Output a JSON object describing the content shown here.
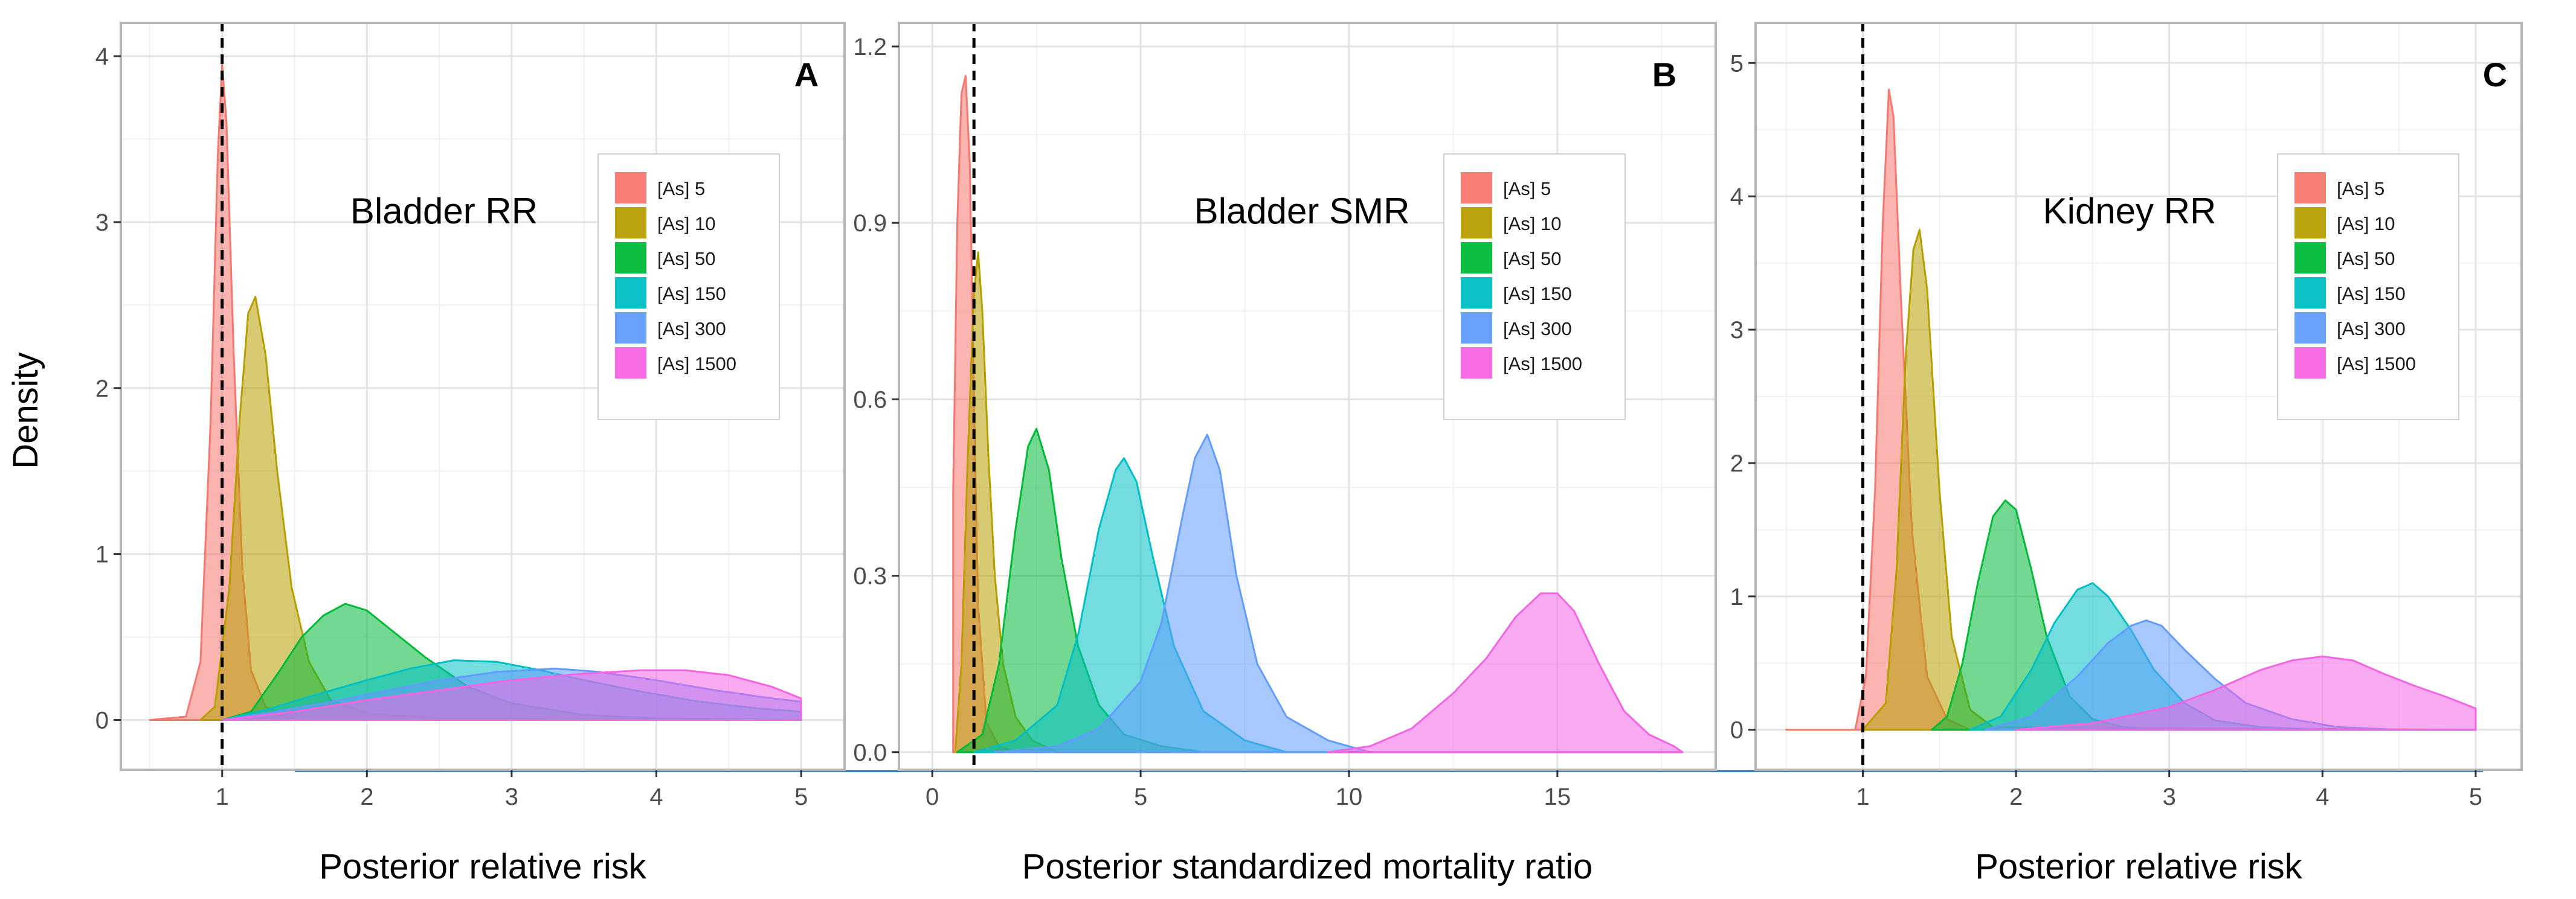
{
  "colors": {
    "series": [
      "#F8766D",
      "#B79F00",
      "#00BA38",
      "#00BFC4",
      "#619CFF",
      "#F564E3"
    ],
    "grid_major": "#e3e3e3",
    "grid_minor": "#f1f1f1",
    "frame": "#b5b5b5",
    "vline": "#000000",
    "bottom_rule": "#4a7fb5"
  },
  "y_axis_label": "Density",
  "legend_entries": [
    "[As] 5",
    "[As] 10",
    "[As] 50",
    "[As] 150",
    "[As] 300",
    "[As] 1500"
  ],
  "chart_data": [
    {
      "type": "area",
      "panel": "A",
      "annotation": "Bladder RR",
      "xlabel": "Posterior relative risk",
      "ylabel": "Density",
      "xlim": [
        0.3,
        5.3
      ],
      "ylim": [
        -0.3,
        4.2
      ],
      "xticks": [
        1,
        2,
        3,
        4,
        5
      ],
      "yticks": [
        0,
        1,
        2,
        3,
        4
      ],
      "reference_line_x": 1,
      "series": [
        {
          "name": "[As] 5",
          "x": [
            0.5,
            0.75,
            0.85,
            0.92,
            0.97,
            1.0,
            1.03,
            1.08,
            1.14,
            1.2,
            1.3,
            1.45,
            1.6,
            5.0
          ],
          "y": [
            0,
            0.02,
            0.35,
            1.8,
            3.4,
            3.95,
            3.6,
            2.2,
            0.9,
            0.3,
            0.08,
            0.02,
            0,
            0
          ]
        },
        {
          "name": "[As] 10",
          "x": [
            0.85,
            0.95,
            1.05,
            1.12,
            1.18,
            1.23,
            1.3,
            1.38,
            1.48,
            1.6,
            1.75,
            2.0,
            2.5,
            5.0
          ],
          "y": [
            0,
            0.08,
            0.8,
            1.8,
            2.45,
            2.55,
            2.2,
            1.5,
            0.8,
            0.35,
            0.12,
            0.04,
            0.01,
            0
          ]
        },
        {
          "name": "[As] 50",
          "x": [
            1.0,
            1.2,
            1.4,
            1.55,
            1.7,
            1.85,
            2.0,
            2.2,
            2.4,
            2.7,
            3.0,
            3.5,
            4.0,
            5.0
          ],
          "y": [
            0,
            0.05,
            0.3,
            0.5,
            0.63,
            0.7,
            0.66,
            0.52,
            0.38,
            0.2,
            0.1,
            0.03,
            0.01,
            0
          ]
        },
        {
          "name": "[As] 150",
          "x": [
            1.0,
            1.3,
            1.6,
            2.0,
            2.3,
            2.6,
            2.9,
            3.2,
            3.5,
            3.9,
            4.3,
            4.7,
            5.0
          ],
          "y": [
            0,
            0.06,
            0.14,
            0.24,
            0.31,
            0.36,
            0.35,
            0.3,
            0.24,
            0.17,
            0.11,
            0.07,
            0.05
          ]
        },
        {
          "name": "[As] 300",
          "x": [
            1.0,
            1.3,
            1.7,
            2.1,
            2.5,
            2.9,
            3.3,
            3.6,
            4.0,
            4.4,
            4.8,
            5.0
          ],
          "y": [
            0,
            0.04,
            0.1,
            0.17,
            0.24,
            0.29,
            0.31,
            0.29,
            0.24,
            0.18,
            0.13,
            0.11
          ]
        },
        {
          "name": "[As] 1500",
          "x": [
            1.0,
            1.5,
            2.0,
            2.5,
            3.0,
            3.5,
            3.9,
            4.2,
            4.5,
            4.8,
            5.0
          ],
          "y": [
            0,
            0.05,
            0.12,
            0.18,
            0.24,
            0.28,
            0.3,
            0.3,
            0.27,
            0.2,
            0.13
          ]
        }
      ]
    },
    {
      "type": "area",
      "panel": "B",
      "annotation": "Bladder SMR",
      "xlabel": "Posterior standardized mortality ratio",
      "ylabel": "",
      "xlim": [
        -0.8,
        18.8
      ],
      "ylim": [
        -0.03,
        1.24
      ],
      "xticks": [
        0,
        5,
        10,
        15
      ],
      "yticks": [
        0.0,
        0.3,
        0.6,
        0.9,
        1.2
      ],
      "ytick_labels": [
        "0.0",
        "0.3",
        "0.6",
        "0.9",
        "1.2"
      ],
      "reference_line_x": 1,
      "series": [
        {
          "name": "[As] 5",
          "x": [
            0.5,
            0.5,
            0.6,
            0.7,
            0.8,
            0.9,
            1.0,
            1.1,
            1.3,
            1.6,
            2.0,
            3.0,
            18.0
          ],
          "y": [
            0,
            0.44,
            0.9,
            1.12,
            1.15,
            1.0,
            0.6,
            0.25,
            0.05,
            0.01,
            0,
            0,
            0
          ]
        },
        {
          "name": "[As] 10",
          "x": [
            0.55,
            0.7,
            0.85,
            1.0,
            1.1,
            1.2,
            1.35,
            1.5,
            1.7,
            2.0,
            2.4,
            3.0,
            4.0,
            18.0
          ],
          "y": [
            0,
            0.15,
            0.5,
            0.78,
            0.85,
            0.75,
            0.5,
            0.3,
            0.15,
            0.06,
            0.02,
            0,
            0,
            0
          ]
        },
        {
          "name": "[As] 50",
          "x": [
            0.6,
            1.2,
            1.6,
            2.0,
            2.3,
            2.5,
            2.8,
            3.1,
            3.5,
            4.0,
            4.6,
            5.5,
            6.5,
            18.0
          ],
          "y": [
            0,
            0.03,
            0.15,
            0.38,
            0.52,
            0.55,
            0.48,
            0.33,
            0.18,
            0.08,
            0.03,
            0.01,
            0,
            0
          ]
        },
        {
          "name": "[As] 150",
          "x": [
            1.0,
            2.0,
            3.0,
            3.5,
            4.0,
            4.4,
            4.6,
            4.9,
            5.3,
            5.8,
            6.5,
            7.5,
            8.5,
            18.0
          ],
          "y": [
            0,
            0.02,
            0.08,
            0.2,
            0.38,
            0.48,
            0.5,
            0.46,
            0.33,
            0.18,
            0.07,
            0.02,
            0,
            0
          ]
        },
        {
          "name": "[As] 300",
          "x": [
            1.5,
            3.0,
            4.0,
            5.0,
            5.5,
            6.0,
            6.3,
            6.6,
            6.9,
            7.3,
            7.8,
            8.5,
            9.5,
            10.5,
            18.0
          ],
          "y": [
            0,
            0.01,
            0.04,
            0.12,
            0.22,
            0.4,
            0.5,
            0.54,
            0.48,
            0.3,
            0.15,
            0.06,
            0.02,
            0,
            0
          ]
        },
        {
          "name": "[As] 1500",
          "x": [
            9.5,
            10.5,
            11.5,
            12.5,
            13.3,
            14.0,
            14.6,
            15.0,
            15.4,
            16.0,
            16.6,
            17.2,
            17.8,
            18.0
          ],
          "y": [
            0,
            0.01,
            0.04,
            0.1,
            0.16,
            0.23,
            0.27,
            0.27,
            0.24,
            0.15,
            0.07,
            0.03,
            0.01,
            0
          ]
        }
      ]
    },
    {
      "type": "area",
      "panel": "C",
      "annotation": "Kidney RR",
      "xlabel": "Posterior relative risk",
      "ylabel": "",
      "xlim": [
        0.3,
        5.3
      ],
      "ylim": [
        -0.3,
        5.3
      ],
      "xticks": [
        1,
        2,
        3,
        4,
        5
      ],
      "yticks": [
        0,
        1,
        2,
        3,
        4,
        5
      ],
      "reference_line_x": 1,
      "series": [
        {
          "name": "[As] 5",
          "x": [
            0.5,
            0.95,
            1.02,
            1.08,
            1.13,
            1.17,
            1.2,
            1.25,
            1.32,
            1.42,
            1.55,
            1.7,
            5.0
          ],
          "y": [
            0,
            0,
            0.4,
            1.8,
            3.8,
            4.8,
            4.6,
            3.2,
            1.5,
            0.4,
            0.08,
            0,
            0
          ]
        },
        {
          "name": "[As] 10",
          "x": [
            1.0,
            1.15,
            1.22,
            1.28,
            1.33,
            1.37,
            1.42,
            1.5,
            1.58,
            1.7,
            1.85,
            5.0
          ],
          "y": [
            0,
            0.2,
            1.2,
            2.8,
            3.6,
            3.75,
            3.3,
            1.8,
            0.7,
            0.15,
            0.02,
            0
          ]
        },
        {
          "name": "[As] 50",
          "x": [
            1.45,
            1.55,
            1.65,
            1.75,
            1.85,
            1.93,
            2.0,
            2.1,
            2.2,
            2.35,
            2.5,
            2.7,
            2.9,
            5.0
          ],
          "y": [
            0,
            0.1,
            0.5,
            1.1,
            1.6,
            1.72,
            1.65,
            1.2,
            0.7,
            0.25,
            0.08,
            0.02,
            0,
            0
          ]
        },
        {
          "name": "[As] 150",
          "x": [
            1.7,
            1.9,
            2.1,
            2.25,
            2.4,
            2.5,
            2.6,
            2.75,
            2.9,
            3.1,
            3.3,
            3.6,
            4.0,
            5.0
          ],
          "y": [
            0,
            0.1,
            0.45,
            0.8,
            1.05,
            1.1,
            1.0,
            0.75,
            0.45,
            0.2,
            0.07,
            0.02,
            0,
            0
          ]
        },
        {
          "name": "[As] 300",
          "x": [
            1.8,
            2.1,
            2.4,
            2.6,
            2.75,
            2.85,
            2.95,
            3.1,
            3.3,
            3.5,
            3.8,
            4.1,
            4.5,
            5.0
          ],
          "y": [
            0,
            0.1,
            0.4,
            0.65,
            0.78,
            0.82,
            0.78,
            0.6,
            0.38,
            0.2,
            0.08,
            0.02,
            0,
            0
          ]
        },
        {
          "name": "[As] 1500",
          "x": [
            2.0,
            2.5,
            3.0,
            3.3,
            3.6,
            3.8,
            4.0,
            4.2,
            4.4,
            4.6,
            4.8,
            5.0
          ],
          "y": [
            0,
            0.05,
            0.17,
            0.3,
            0.45,
            0.52,
            0.55,
            0.52,
            0.42,
            0.33,
            0.25,
            0.16
          ]
        }
      ]
    }
  ]
}
